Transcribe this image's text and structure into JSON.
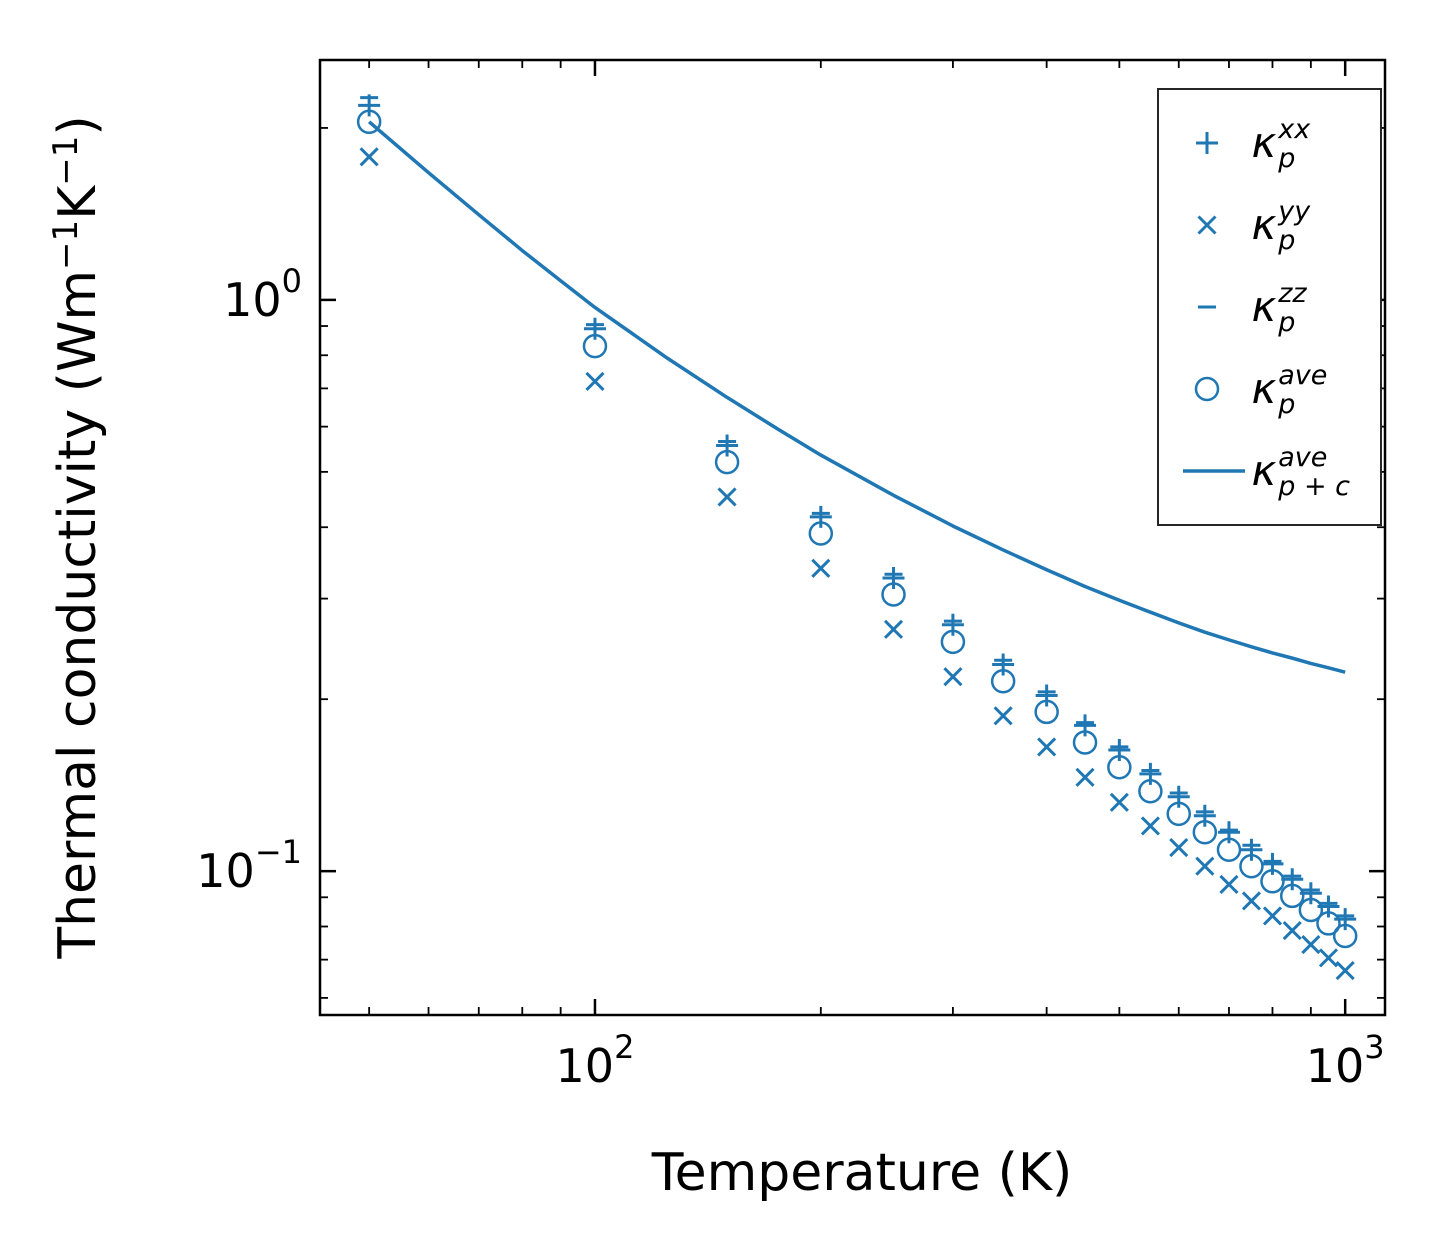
{
  "chart_data": {
    "type": "scatter",
    "title": "",
    "xlabel": "Temperature (K)",
    "ylabel": "Thermal conductivity (Wm−1K−1)",
    "ylabel_parts": [
      {
        "t": "Thermal conductivity (Wm"
      },
      {
        "t": "−1",
        "sup": true
      },
      {
        "t": "K"
      },
      {
        "t": "−1",
        "sup": true
      },
      {
        "t": ")"
      }
    ],
    "x_scale": "log",
    "y_scale": "log",
    "xlim": [
      43,
      1130
    ],
    "ylim": [
      0.056,
      2.63
    ],
    "x_ticks": [
      {
        "value": 100,
        "mantissa": "10",
        "exponent": "2"
      },
      {
        "value": 1000,
        "mantissa": "10",
        "exponent": "3"
      }
    ],
    "y_ticks": [
      {
        "value": 1,
        "mantissa": "10",
        "exponent": "0"
      },
      {
        "value": 0.1,
        "mantissa": "10",
        "exponent": "−1"
      }
    ],
    "grid": false,
    "color": "#1f77b4",
    "spine_color": "#000000",
    "legend_position": "upper right",
    "temperatures": [
      50,
      100,
      150,
      200,
      250,
      300,
      350,
      400,
      450,
      500,
      550,
      600,
      650,
      700,
      750,
      800,
      850,
      900,
      950,
      1000
    ],
    "series": [
      {
        "name": "kappa-p-xx",
        "marker": "plus",
        "label": {
          "base": "κ",
          "sup": "xx",
          "sub": "p"
        },
        "values": [
          2.19,
          0.89,
          0.556,
          0.417,
          0.326,
          0.27,
          0.23,
          0.203,
          0.18,
          0.163,
          0.148,
          0.135,
          0.125,
          0.117,
          0.109,
          0.103,
          0.0968,
          0.0915,
          0.0867,
          0.0824
        ]
      },
      {
        "name": "kappa-p-yy",
        "marker": "cross",
        "label": {
          "base": "κ",
          "sup": "yy",
          "sub": "p"
        },
        "values": [
          1.78,
          0.72,
          0.452,
          0.339,
          0.265,
          0.219,
          0.187,
          0.165,
          0.146,
          0.132,
          0.12,
          0.11,
          0.102,
          0.0948,
          0.0887,
          0.0835,
          0.0787,
          0.0744,
          0.0705,
          0.067
        ]
      },
      {
        "name": "kappa-p-zz",
        "marker": "hline",
        "label": {
          "base": "κ",
          "sup": "zz",
          "sub": "p"
        },
        "values": [
          2.26,
          0.905,
          0.565,
          0.423,
          0.331,
          0.274,
          0.234,
          0.206,
          0.182,
          0.165,
          0.15,
          0.137,
          0.127,
          0.118,
          0.111,
          0.104,
          0.098,
          0.0927,
          0.0878,
          0.0835
        ]
      },
      {
        "name": "kappa-p-ave",
        "marker": "circle",
        "label": {
          "base": "κ",
          "sup": "ave",
          "sub": "p"
        },
        "values": [
          2.05,
          0.83,
          0.52,
          0.39,
          0.305,
          0.252,
          0.215,
          0.19,
          0.168,
          0.152,
          0.138,
          0.126,
          0.117,
          0.109,
          0.102,
          0.096,
          0.0905,
          0.0855,
          0.081,
          0.077
        ]
      },
      {
        "name": "kappa-p-plus-c-ave",
        "marker": "line",
        "label": {
          "base": "κ",
          "sup": "ave",
          "sub": "p + c"
        },
        "x": [
          50,
          60,
          70,
          80,
          90,
          100,
          125,
          150,
          175,
          200,
          250,
          300,
          350,
          400,
          450,
          500,
          550,
          600,
          650,
          700,
          750,
          800,
          850,
          900,
          950,
          1000
        ],
        "values": [
          2.05,
          1.67,
          1.41,
          1.22,
          1.08,
          0.97,
          0.79,
          0.675,
          0.595,
          0.535,
          0.455,
          0.402,
          0.365,
          0.337,
          0.315,
          0.298,
          0.284,
          0.272,
          0.262,
          0.254,
          0.247,
          0.241,
          0.236,
          0.231,
          0.227,
          0.223
        ]
      }
    ]
  }
}
